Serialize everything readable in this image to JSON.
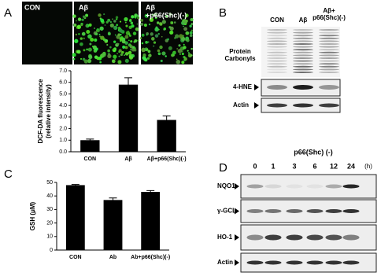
{
  "chart_data": [
    {
      "type": "bar",
      "ylabel": [
        "DCF-DA fluorescence",
        "(relative intensity)"
      ],
      "categories": [
        "CON",
        "Aβ",
        "Aβ+p66(Shc)(-)"
      ],
      "values": [
        1.0,
        5.8,
        2.75
      ],
      "errors": [
        0.1,
        0.6,
        0.35
      ],
      "color": "#000000",
      "ylim": [
        0,
        7
      ],
      "yticks": [
        {
          "value": 0,
          "label": "0.0"
        },
        {
          "value": 1,
          "label": "1.0"
        },
        {
          "value": 2,
          "label": "2.0"
        },
        {
          "value": 3,
          "label": "3.0"
        },
        {
          "value": 4,
          "label": "4.0"
        },
        {
          "value": 5,
          "label": "5.0"
        },
        {
          "value": 6,
          "label": "6.0"
        },
        {
          "value": 7,
          "label": "7.0"
        }
      ]
    },
    {
      "type": "bar",
      "ylabel": [
        "GSH (μM)"
      ],
      "categories": [
        "CON",
        "Ab",
        "Ab+p66(Shc)(-)"
      ],
      "values": [
        48,
        37,
        43
      ],
      "errors": [
        0.5,
        1.5,
        1
      ],
      "color": "#000000",
      "ylim": [
        0,
        50
      ],
      "yticks": [
        0,
        10,
        20,
        30,
        40,
        50
      ]
    }
  ],
  "panel_labels": [
    "A",
    "B",
    "C",
    "D"
  ],
  "panel_a": {
    "image_labels": [
      [
        "CON"
      ],
      [
        "Aβ"
      ],
      [
        "Aβ",
        "+p66(Shc)(-)"
      ]
    ]
  },
  "panel_b": {
    "columns": [
      [
        "CON"
      ],
      [
        "Aβ"
      ],
      [
        "Aβ+",
        "p66(Shc)(-)"
      ]
    ],
    "rows": [
      [
        "Protein",
        "Carbonyls"
      ],
      [
        "4-HNE"
      ],
      [
        "Actin"
      ]
    ]
  },
  "panel_d": {
    "treatment": "p66(Shc) (-)",
    "times": [
      "0",
      "1",
      "3",
      "6",
      "12",
      "24"
    ],
    "time_unit": "(h)",
    "rows": [
      "NQO1",
      "γ-GCL",
      "HO-1",
      "Actin"
    ]
  }
}
